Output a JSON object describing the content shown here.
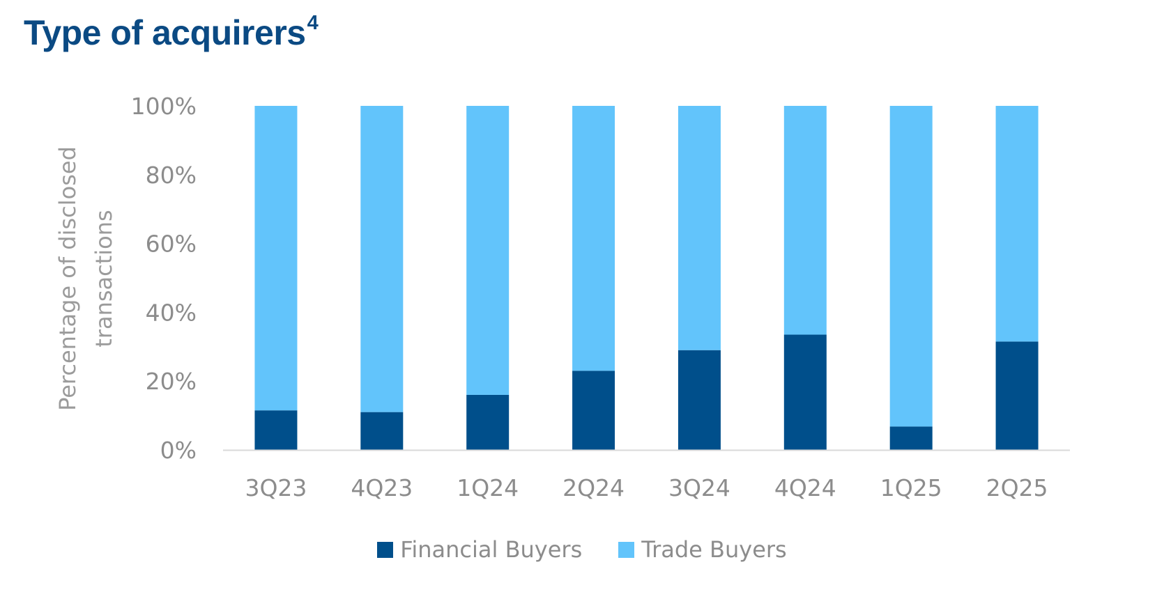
{
  "title": {
    "text": "Type of acquirers",
    "superscript": "4"
  },
  "colors": {
    "title": "#0b4a83",
    "financial": "#004f8b",
    "trade": "#62c4fb",
    "axis_text": "#8c8c8c",
    "axis_line": "#d9d9d9"
  },
  "chart_data": {
    "type": "bar",
    "stacked": true,
    "categories": [
      "3Q23",
      "4Q23",
      "1Q24",
      "2Q24",
      "3Q24",
      "4Q24",
      "1Q25",
      "2Q25"
    ],
    "series": [
      {
        "name": "Financial Buyers",
        "color": "#004f8b",
        "values": [
          11.5,
          11,
          16,
          23,
          29,
          33.5,
          6.8,
          31.5
        ]
      },
      {
        "name": "Trade Buyers",
        "color": "#62c4fb",
        "values": [
          88.5,
          89,
          84,
          77,
          71,
          66.5,
          93.2,
          68.5
        ]
      }
    ],
    "ylabel": "Percentage of disclosed transactions",
    "ylabel_lines": [
      "Percentage of disclosed",
      "transactions"
    ],
    "xlabel": "",
    "ylim": [
      0,
      100
    ],
    "y_ticks": [
      0,
      20,
      40,
      60,
      80,
      100
    ],
    "y_tick_labels": [
      "0%",
      "20%",
      "40%",
      "60%",
      "80%",
      "100%"
    ],
    "grid": false,
    "legend_position": "bottom"
  }
}
